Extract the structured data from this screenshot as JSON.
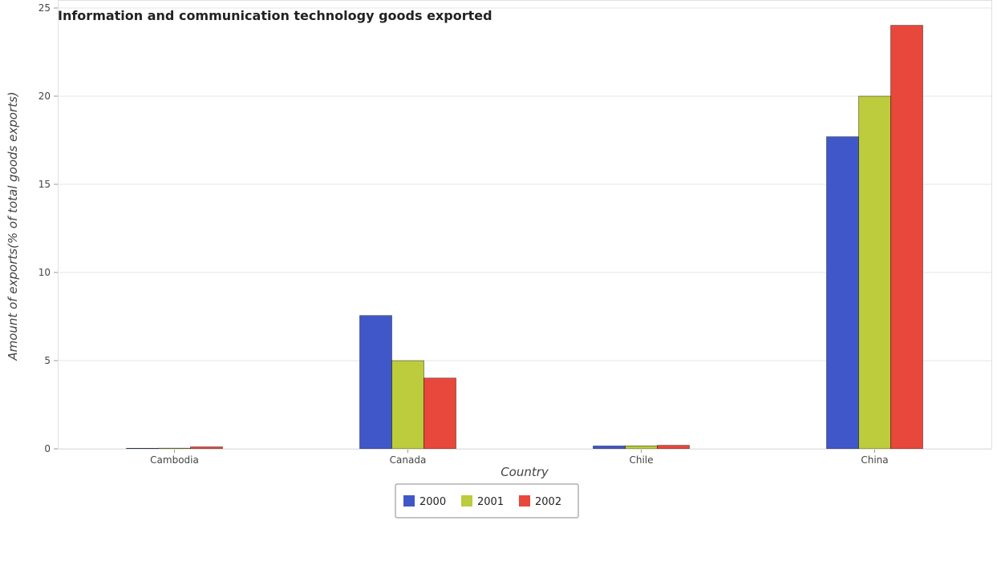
{
  "chart_data": {
    "type": "bar",
    "title": "Information and communication technology goods exported",
    "xlabel": "Country",
    "ylabel": "Amount of exports(% of total goods exports)",
    "categories": [
      "Cambodia",
      "Canada",
      "Chile",
      "China"
    ],
    "series": [
      {
        "name": "2000",
        "color": "#3f57c9",
        "values": [
          0.03,
          7.56,
          0.16,
          17.7
        ]
      },
      {
        "name": "2001",
        "color": "#bccc3c",
        "values": [
          0.04,
          5.0,
          0.17,
          20.0
        ]
      },
      {
        "name": "2002",
        "color": "#e8473b",
        "values": [
          0.11,
          4.01,
          0.2,
          24.02
        ]
      }
    ],
    "ylim": [
      0,
      25
    ],
    "yticks": [
      "0",
      "5",
      "10",
      "15",
      "20",
      "25"
    ],
    "grid": true,
    "legend_position": "bottom-center"
  }
}
